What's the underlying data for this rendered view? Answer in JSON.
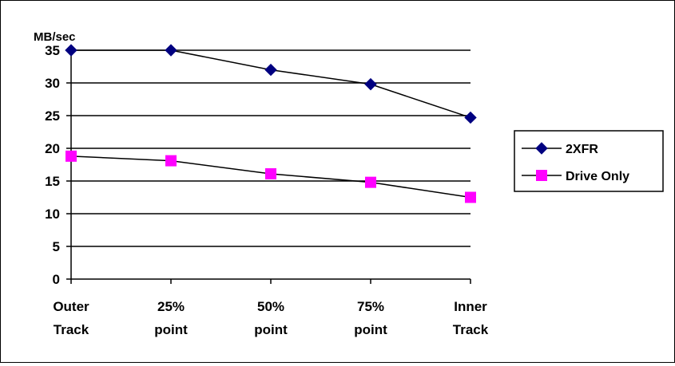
{
  "chart_data": {
    "type": "line",
    "title": "",
    "ylabel": "MB/sec",
    "xlabel": "",
    "categories": [
      [
        "Outer",
        "Track"
      ],
      [
        "25%",
        "point"
      ],
      [
        "50%",
        "point"
      ],
      [
        "75%",
        "point"
      ],
      [
        "Inner",
        "Track"
      ]
    ],
    "ylim": [
      0,
      35
    ],
    "yticks": [
      0,
      5,
      10,
      15,
      20,
      25,
      30,
      35
    ],
    "grid": "horizontal",
    "legend_position": "right",
    "series": [
      {
        "name": "2XFR",
        "values": [
          35,
          35,
          32,
          29.8,
          24.7
        ],
        "color": "#000080",
        "marker": "diamond"
      },
      {
        "name": "Drive Only",
        "values": [
          18.8,
          18.1,
          16.1,
          14.8,
          12.5
        ],
        "color": "#FF00FF",
        "marker": "square"
      }
    ]
  }
}
